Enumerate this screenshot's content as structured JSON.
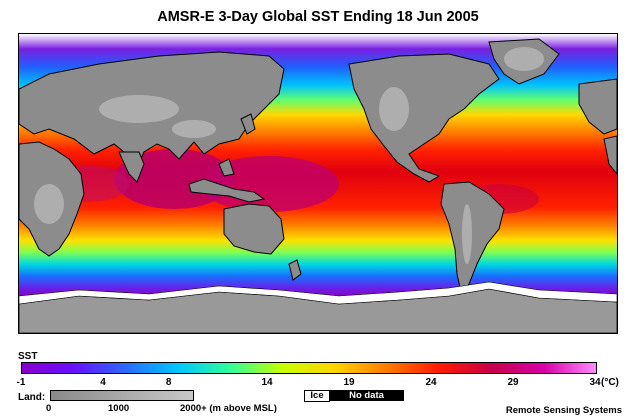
{
  "title": "AMSR-E 3-Day Global SST Ending 18 Jun 2005",
  "sst_legend": {
    "label": "SST",
    "ticks": [
      "-1",
      "4",
      "8",
      "14",
      "19",
      "24",
      "29",
      "34"
    ],
    "tick_values": [
      -1,
      4,
      8,
      14,
      19,
      24,
      29,
      34
    ],
    "range": [
      -1,
      34
    ],
    "unit": "(°C)",
    "colors": [
      "#8800cc",
      "#6a10ff",
      "#2a6bff",
      "#00c8ff",
      "#32ff9a",
      "#c8ff00",
      "#ffd400",
      "#ff7a00",
      "#ff1a00",
      "#c8004a",
      "#d800a8",
      "#ff8cff"
    ]
  },
  "land_legend": {
    "label": "Land:",
    "ticks": [
      "0",
      "1000",
      "2000+ (m above MSL)"
    ]
  },
  "ice_label": "Ice",
  "no_data_label": "No data",
  "credit": "Remote Sensing Systems",
  "colors": {
    "land": "#8c8c8c",
    "land_high": "#b4b4b4",
    "ice": "#ffffff",
    "warm_pool": "#b8006a",
    "tropics": "#e01000"
  }
}
